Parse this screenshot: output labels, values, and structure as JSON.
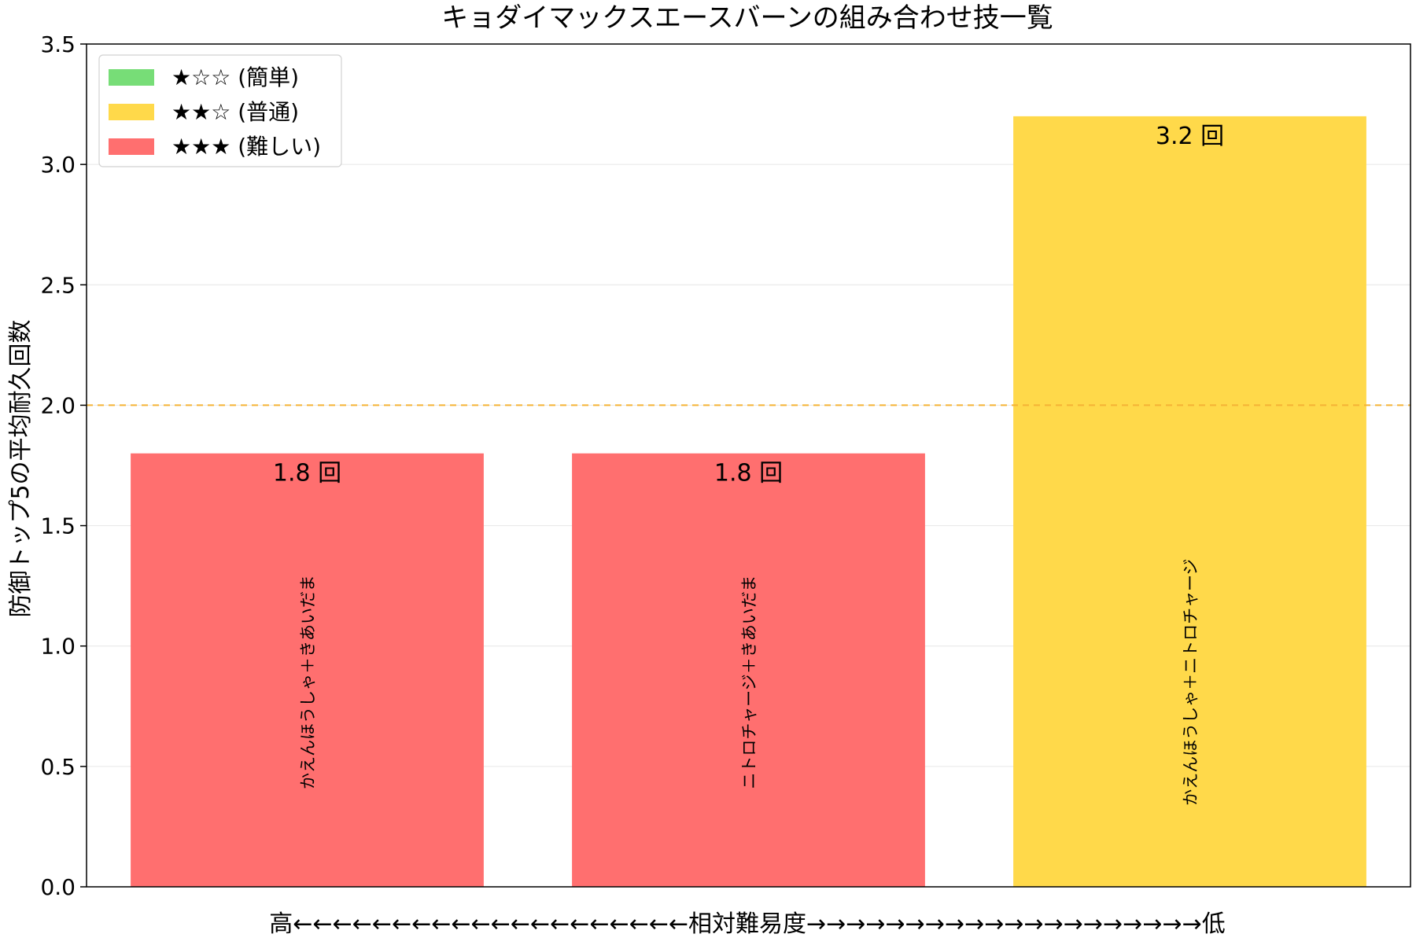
{
  "chart_data": {
    "type": "bar",
    "title": "キョダイマックスエースバーンの組み合わせ技一覧",
    "xlabel": "高←←←←←←←←←←←←←←←←←←←←相対難易度→→→→→→→→→→→→→→→→→→→→低",
    "ylabel": "防御トップ5の平均耐久回数",
    "categories": [
      "かえんほうしゃ＋きあいだま",
      "ニトロチャージ＋きあいだま",
      "かえんほうしゃ＋ニトロチャージ"
    ],
    "values": [
      1.8,
      1.8,
      3.2
    ],
    "value_labels": [
      "1.8 回",
      "1.8 回",
      "3.2 回"
    ],
    "bar_colors": [
      "#ff6f6f",
      "#ff6f6f",
      "#ffd94a"
    ],
    "difficulty": [
      "★★★ (難しい)",
      "★★★ (難しい)",
      "★★☆ (普通)"
    ],
    "ylim": [
      0,
      3.5
    ],
    "yticks": [
      "0.0",
      "0.5",
      "1.0",
      "1.5",
      "2.0",
      "2.5",
      "3.0",
      "3.5"
    ],
    "ytick_values": [
      0,
      0.5,
      1.0,
      1.5,
      2.0,
      2.5,
      3.0,
      3.5
    ],
    "reference_line": {
      "value": 2.0,
      "color": "#f5b335",
      "style": "dashed"
    },
    "grid": "horizontal",
    "legend": {
      "placement": "top-left",
      "entries": [
        {
          "label": "★☆☆ (簡単)",
          "color": "#77dd77"
        },
        {
          "label": "★★☆ (普通)",
          "color": "#ffd94a"
        },
        {
          "label": "★★★ (難しい)",
          "color": "#ff6f6f"
        }
      ]
    }
  }
}
